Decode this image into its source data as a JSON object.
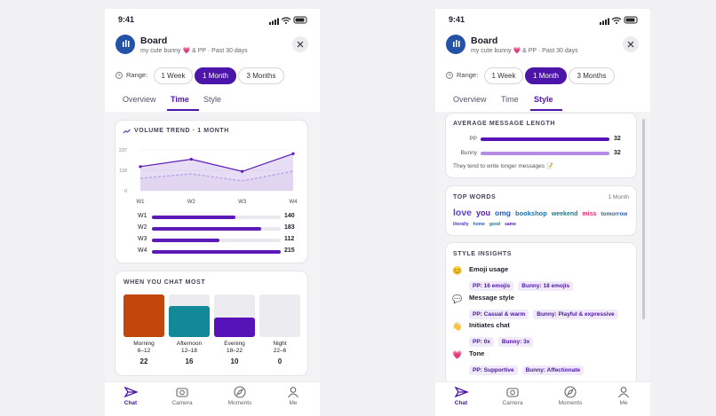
{
  "screens": [
    {
      "status_time": "9:41",
      "header": {
        "title": "Board",
        "subtitle": "my cute bunny 💗 & PP · Past 30 days"
      },
      "range": {
        "label": "Range:",
        "options": [
          "1 Week",
          "1 Month",
          "3 Months"
        ],
        "selected": 1
      },
      "tabs": {
        "items": [
          "Overview",
          "Time",
          "Style"
        ],
        "active": 1
      },
      "volume_trend": {
        "type": "line",
        "title": "VOLUME TREND · 1 MONTH",
        "categories": [
          "W1",
          "W2",
          "W3",
          "W4"
        ],
        "series": [
          {
            "color": "#5b1ab8",
            "values": [
              140,
              183,
              112,
              215
            ]
          },
          {
            "color": "#b79be6",
            "values": [
              72,
              98,
              57,
              113
            ]
          }
        ],
        "ylim": [
          0,
          237
        ],
        "yticks": [
          0,
          118,
          237
        ]
      },
      "chat_most": {
        "type": "bar",
        "title": "WHEN YOU CHAT MOST",
        "slots": [
          {
            "label": "Morning",
            "hours": "6–12",
            "value": 22,
            "color": "#c2470c"
          },
          {
            "label": "Afternoon",
            "hours": "12–18",
            "value": 16,
            "color": "#138997"
          },
          {
            "label": "Evening",
            "hours": "18–22",
            "value": 10,
            "color": "#5614b8"
          },
          {
            "label": "Night",
            "hours": "22–6",
            "value": 0,
            "color": "#c8c8d0"
          }
        ]
      },
      "nav": {
        "items": [
          "Chat",
          "Camera",
          "Moments",
          "Me"
        ],
        "active": 0
      }
    },
    {
      "status_time": "9:41",
      "header": {
        "title": "Board",
        "subtitle": "my cute bunny 💗 & PP · Past 30 days"
      },
      "range": {
        "label": "Range:",
        "options": [
          "1 Week",
          "1 Month",
          "3 Months"
        ],
        "selected": 1
      },
      "tabs": {
        "items": [
          "Overview",
          "Time",
          "Style"
        ],
        "active": 2
      },
      "avg_length": {
        "type": "bar",
        "title": "AVERAGE MESSAGE LENGTH",
        "rows": [
          {
            "name": "PP",
            "value": 32,
            "color": "#5614b8"
          },
          {
            "name": "Bunny",
            "value": 32,
            "color": "#b58be8"
          }
        ],
        "note": "They tend to write longer messages 📝"
      },
      "top_words": {
        "title": "TOP WORDS",
        "period": "1 Month",
        "words": [
          {
            "text": "love",
            "color": "#5a3fd6"
          },
          {
            "text": "you",
            "color": "#5614b8"
          },
          {
            "text": "omg",
            "color": "#2158c0"
          },
          {
            "text": "bookshop",
            "color": "#1b6ea8"
          },
          {
            "text": "weekend",
            "color": "#1c7a8c"
          },
          {
            "text": "miss",
            "color": "#d6336c"
          },
          {
            "text": "tomorrow",
            "color": "#2a5db0"
          },
          {
            "text": "literally",
            "color": "#4a3fc0"
          },
          {
            "text": "home",
            "color": "#2a5db0"
          },
          {
            "text": "good",
            "color": "#1c7a8c"
          },
          {
            "text": "same",
            "color": "#5614b8"
          }
        ]
      },
      "style_insights": {
        "title": "STYLE INSIGHTS",
        "items": [
          {
            "icon": "😊",
            "name": "Emoji usage",
            "chips": [
              "PP: 16 emojis",
              "Bunny: 18 emojis"
            ]
          },
          {
            "icon": "💬",
            "name": "Message style",
            "chips": [
              "PP: Casual & warm",
              "Bunny: Playful & expressive"
            ]
          },
          {
            "icon": "👋",
            "name": "Initiates chat",
            "chips": [
              "PP: 0x",
              "Bunny: 3x"
            ]
          },
          {
            "icon": "💗",
            "name": "Tone",
            "chips": [
              "PP: Supportive",
              "Bunny: Affectionate"
            ]
          }
        ]
      },
      "nav": {
        "items": [
          "Chat",
          "Camera",
          "Moments",
          "Me"
        ],
        "active": 0
      }
    }
  ]
}
